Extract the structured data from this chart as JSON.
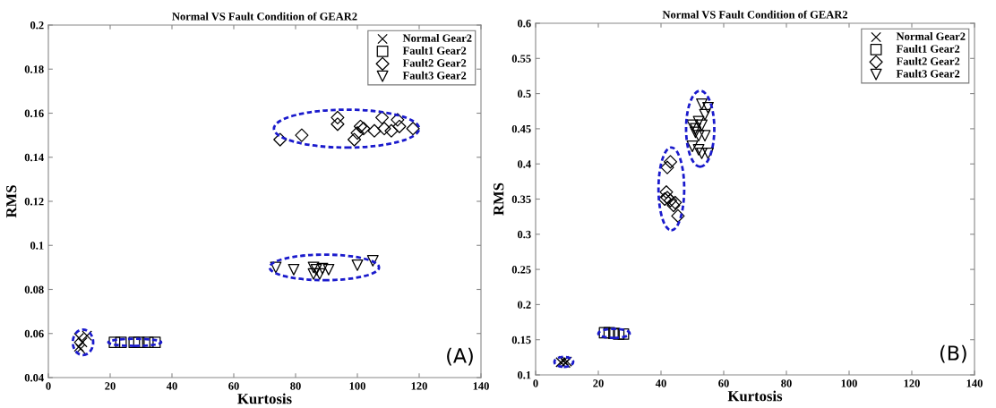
{
  "chart_data": [
    {
      "type": "scatter",
      "title": "Normal VS Fault Condition of GEAR2",
      "xlabel": "Kurtosis",
      "ylabel": "RMS",
      "xlim": [
        0,
        140
      ],
      "xticks": [
        0,
        20,
        40,
        60,
        80,
        100,
        120,
        140
      ],
      "ylim": [
        0.04,
        0.2
      ],
      "yticks": [
        0.04,
        0.06,
        0.08,
        0.1,
        0.12,
        0.14,
        0.16,
        0.18,
        0.2
      ],
      "grid": false,
      "legend": "top right",
      "annotations": [
        "(A)"
      ],
      "series": [
        {
          "name": "Normal Gear2",
          "marker": "cross",
          "color": "#000000",
          "x": [
            9.9,
            12.5,
            9.9,
            10.4,
            11
          ],
          "values": [
            0.058,
            0.059,
            0.054,
            0.053,
            0.056
          ]
        },
        {
          "name": "Fault1 Gear2",
          "marker": "square",
          "color": "#000000",
          "x": [
            21.4,
            23.5,
            27.8,
            29.3,
            32.2,
            34.5
          ],
          "values": [
            0.056,
            0.056,
            0.056,
            0.056,
            0.056,
            0.056
          ]
        },
        {
          "name": "Fault2 Gear2",
          "marker": "diamond",
          "color": "#000000",
          "x": [
            75,
            82,
            93.6,
            93.6,
            99,
            100,
            101,
            102,
            105.5,
            108,
            108.7,
            111,
            113,
            113.6,
            118
          ],
          "values": [
            0.148,
            0.15,
            0.158,
            0.155,
            0.148,
            0.151,
            0.154,
            0.153,
            0.152,
            0.158,
            0.153,
            0.152,
            0.157,
            0.154,
            0.153
          ]
        },
        {
          "name": "Fault3 Gear2",
          "marker": "triangle",
          "color": "#000000",
          "x": [
            73.6,
            79.4,
            85.8,
            85.8,
            86.7,
            87.8,
            88.7,
            90.7,
            100,
            105
          ],
          "values": [
            0.09,
            0.089,
            0.09,
            0.087,
            0.089,
            0.087,
            0.0895,
            0.089,
            0.091,
            0.093
          ]
        }
      ]
    },
    {
      "type": "scatter",
      "title": "Normal VS Fault Condition of GEAR2",
      "xlabel": "Kurtosis",
      "ylabel": "RMS",
      "xlim": [
        0,
        140
      ],
      "xticks": [
        0,
        20,
        40,
        60,
        80,
        100,
        120,
        140
      ],
      "ylim": [
        0.1,
        0.6
      ],
      "yticks": [
        0.1,
        0.15,
        0.2,
        0.25,
        0.3,
        0.35,
        0.4,
        0.45,
        0.5,
        0.55,
        0.6
      ],
      "grid": false,
      "legend": "top right",
      "annotations": [
        "(B)"
      ],
      "series": [
        {
          "name": "Normal Gear2",
          "marker": "cross",
          "color": "#000000",
          "x": [
            8,
            9,
            10,
            9.5
          ],
          "values": [
            0.118,
            0.12,
            0.119,
            0.117
          ]
        },
        {
          "name": "Fault1 Gear2",
          "marker": "square",
          "color": "#000000",
          "x": [
            22,
            23.5,
            25,
            26.5,
            28
          ],
          "values": [
            0.16,
            0.16,
            0.159,
            0.158,
            0.158
          ]
        },
        {
          "name": "Fault2 Gear2",
          "marker": "diamond",
          "color": "#000000",
          "x": [
            43,
            42,
            41.7,
            42,
            43,
            41.2,
            44,
            45.4,
            44.5
          ],
          "values": [
            0.403,
            0.395,
            0.36,
            0.352,
            0.348,
            0.35,
            0.341,
            0.326,
            0.345
          ]
        },
        {
          "name": "Fault3 Gear2",
          "marker": "triangle",
          "color": "#000000",
          "x": [
            50,
            51,
            52,
            53,
            54,
            55,
            53,
            52,
            54,
            50,
            52,
            53,
            55,
            51
          ],
          "values": [
            0.455,
            0.45,
            0.46,
            0.455,
            0.47,
            0.48,
            0.485,
            0.44,
            0.44,
            0.425,
            0.42,
            0.415,
            0.415,
            0.445
          ]
        }
      ]
    }
  ]
}
